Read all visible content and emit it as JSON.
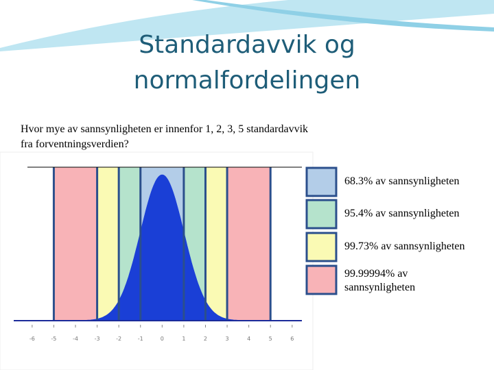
{
  "title": "Standardavvik og normalfordelingen",
  "question": "Hvor mye av sannsynligheten er innenfor 1, 2, 3, 5 standardavvik fra forventningsverdien?",
  "chart_data": {
    "type": "normal",
    "xlim": [
      -6.85,
      6.45
    ],
    "ylim": [
      0,
      0.42
    ],
    "xticks": [
      -6,
      -5,
      -4,
      -3,
      -2,
      -1,
      0,
      1,
      2,
      3,
      4,
      5,
      6
    ],
    "curve_color": "#1a3fd6",
    "bands": [
      {
        "sigma": 1,
        "name": "68.3% av sannsynligheten",
        "color": "#b3cde8"
      },
      {
        "sigma": 2,
        "name": "95.4% av sannsynligheten",
        "color": "#b5e3cc"
      },
      {
        "sigma": 3,
        "name": "99.73% av sannsynligheten",
        "color": "#fafab4"
      },
      {
        "sigma": 5,
        "name": "99.99994% av sannsynligheten",
        "color": "#f8b3b7"
      }
    ]
  }
}
